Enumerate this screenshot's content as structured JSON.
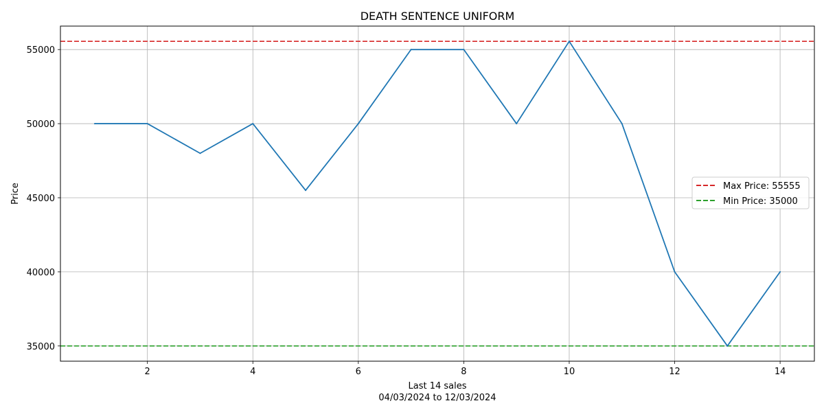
{
  "chart_data": {
    "type": "line",
    "title": "DEATH SENTENCE UNIFORM",
    "xlabel": "Last 14 sales",
    "xlabel_sub": "04/03/2024 to 12/03/2024",
    "ylabel": "Price",
    "x": [
      1,
      2,
      3,
      4,
      5,
      6,
      7,
      8,
      9,
      10,
      11,
      12,
      13,
      14
    ],
    "series": [
      {
        "values": [
          50000,
          50000,
          48000,
          50000,
          45500,
          50000,
          55000,
          55000,
          50000,
          55555,
          50000,
          40000,
          35000,
          40000
        ],
        "color": "#1f77b4"
      }
    ],
    "reference_lines": [
      {
        "label": "Max Price: 55555",
        "value": 55555,
        "color": "#d62728",
        "style": "dashed"
      },
      {
        "label": "Min Price: 35000",
        "value": 35000,
        "color": "#2ca02c",
        "style": "dashed"
      }
    ],
    "xlim": [
      0.35,
      14.65
    ],
    "ylim": [
      33972,
      56583
    ],
    "xticks": [
      2,
      4,
      6,
      8,
      10,
      12,
      14
    ],
    "yticks": [
      35000,
      40000,
      45000,
      50000,
      55000
    ],
    "grid": true,
    "legend_position": "center-right"
  }
}
